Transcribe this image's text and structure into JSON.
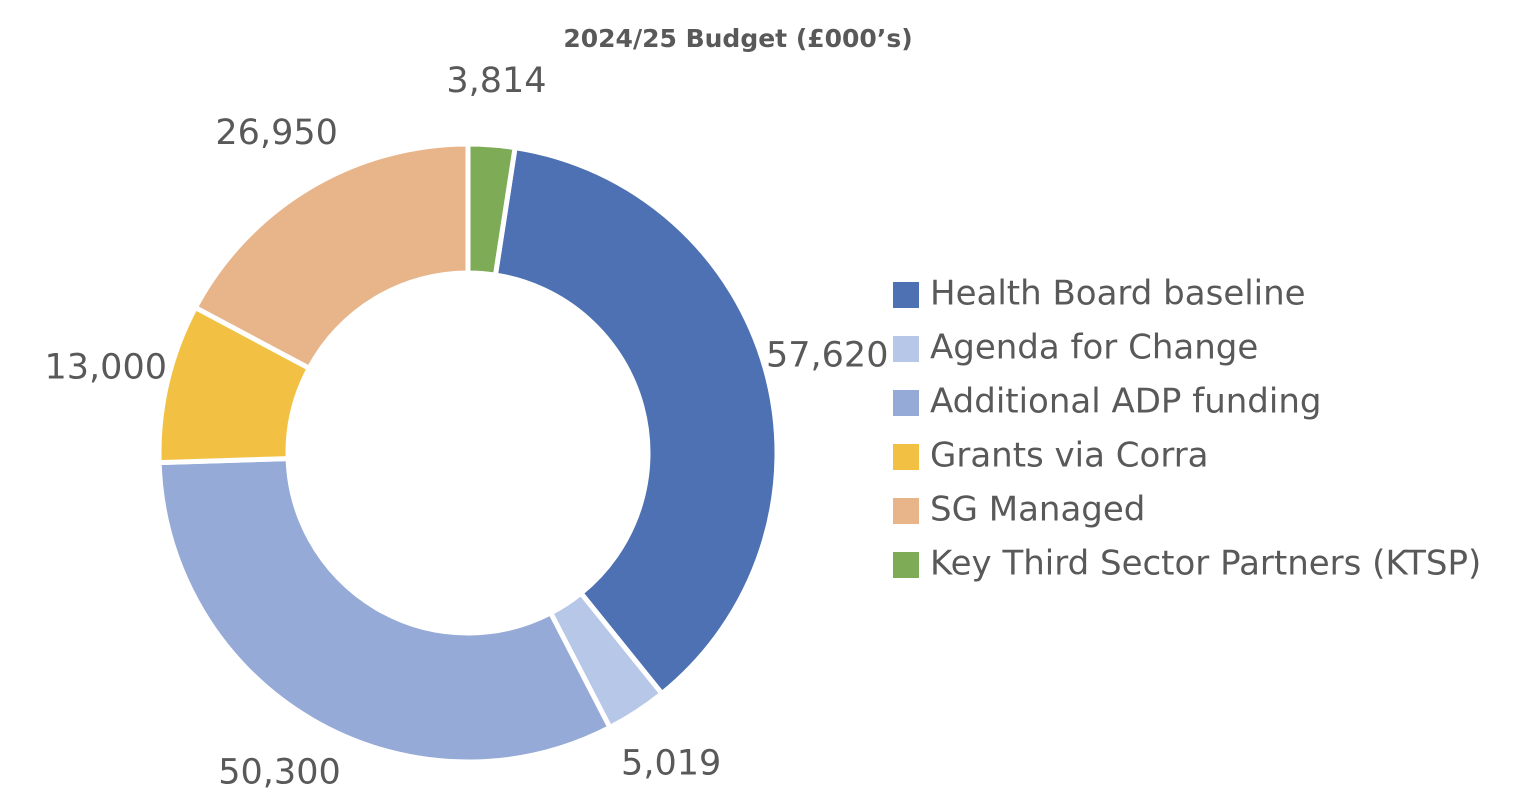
{
  "chart_data": {
    "type": "donut",
    "title": "2024/25 Budget (£000’s)",
    "categories": [
      "Health Board baseline",
      "Agenda for Change",
      "Additional ADP funding",
      "Grants via Corra",
      "SG Managed",
      "Key Third Sector Partners (KTSP)"
    ],
    "values": [
      57620,
      5019,
      50300,
      13000,
      26950,
      3814
    ],
    "value_labels": [
      "57,620",
      "5,019",
      "50,300",
      "13,000",
      "26,950",
      "3,814"
    ],
    "colors": [
      "#4e71b3",
      "#b7c7e7",
      "#95aad6",
      "#f2c143",
      "#e8b489",
      "#7eab55"
    ],
    "legend": "right"
  }
}
